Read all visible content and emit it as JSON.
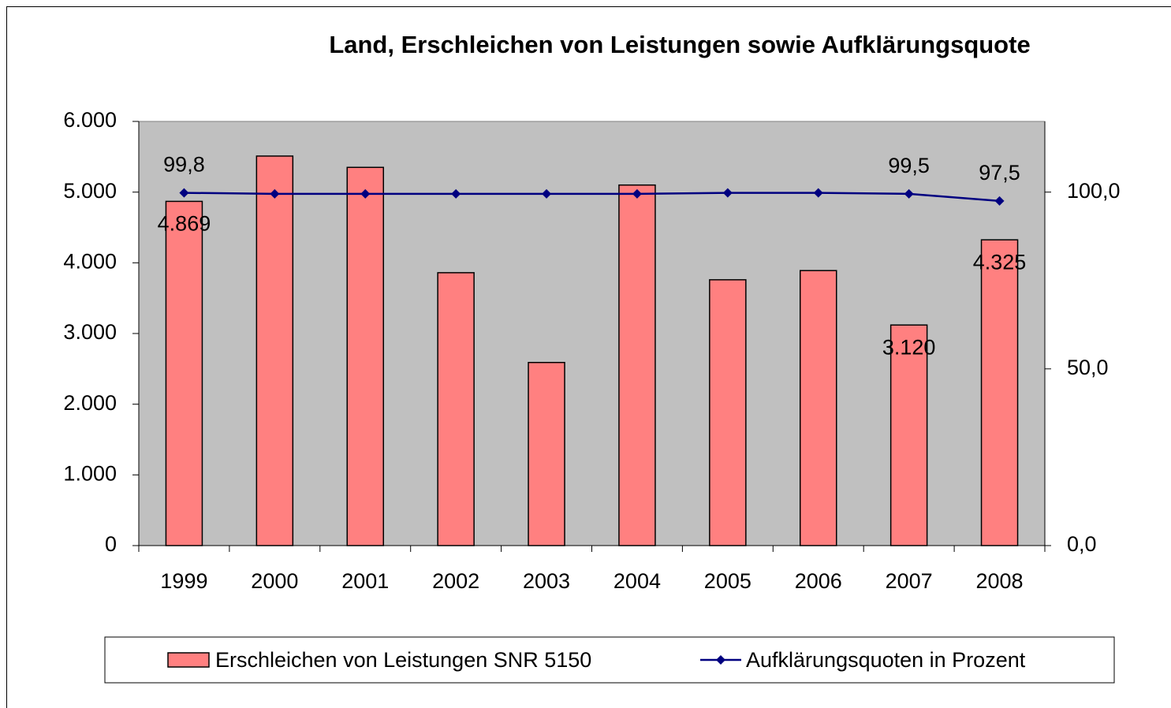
{
  "chart_data": {
    "type": "bar",
    "title": "Land, Erschleichen von Leistungen sowie Aufklärungsquote",
    "categories": [
      "1999",
      "2000",
      "2001",
      "2002",
      "2003",
      "2004",
      "2005",
      "2006",
      "2007",
      "2008"
    ],
    "series": [
      {
        "name": "Erschleichen von Leistungen SNR 5150",
        "type": "bar",
        "color": "#ff8080",
        "values": [
          4869,
          5510,
          5350,
          3860,
          2590,
          5100,
          3760,
          3890,
          3120,
          4325
        ],
        "value_labels": [
          "4.869",
          null,
          null,
          null,
          null,
          null,
          null,
          null,
          "3.120",
          "4.325"
        ]
      },
      {
        "name": "Aufklärungsquoten in Prozent",
        "type": "line",
        "axis": "y2",
        "color": "#000080",
        "values": [
          99.8,
          99.5,
          99.5,
          99.5,
          99.5,
          99.5,
          99.8,
          99.8,
          99.5,
          97.5
        ],
        "value_labels": [
          "99,8",
          null,
          null,
          null,
          null,
          null,
          null,
          null,
          "99,5",
          "97,5"
        ]
      }
    ],
    "ylim": [
      0,
      6000
    ],
    "yticks": [
      0,
      {
        "value": 1000,
        "label": "1.000"
      },
      {
        "value": 2000,
        "label": "2.000"
      },
      {
        "value": 3000,
        "label": "3.000"
      },
      {
        "value": 4000,
        "label": "4.000"
      },
      {
        "value": 5000,
        "label": "5.000"
      },
      {
        "value": 6000,
        "label": "6.000"
      }
    ],
    "y2lim": [
      0,
      120
    ],
    "y2ticks": [
      {
        "value": 0,
        "label": "0,0"
      },
      {
        "value": 50,
        "label": "50,0"
      },
      {
        "value": 100,
        "label": "100,0"
      }
    ],
    "grid": false,
    "plot_background": "#c0c0c0",
    "legend": "bottom"
  }
}
